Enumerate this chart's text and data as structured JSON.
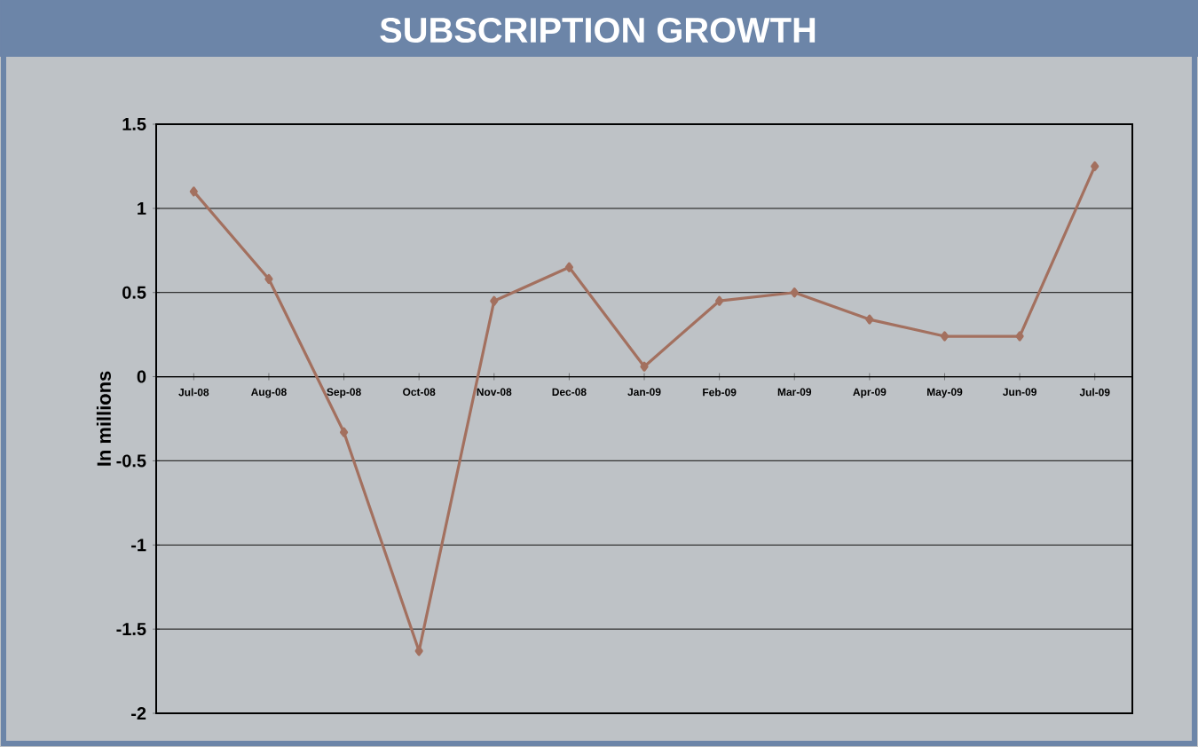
{
  "chart_data": {
    "type": "line",
    "title": "SUBSCRIPTION GROWTH",
    "ylabel": "In millions",
    "categories": [
      "Jul-08",
      "Aug-08",
      "Sep-08",
      "Oct-08",
      "Nov-08",
      "Dec-08",
      "Jan-09",
      "Feb-09",
      "Mar-09",
      "Apr-09",
      "May-09",
      "Jun-09",
      "Jul-09"
    ],
    "series": [
      {
        "color": "#a3705f",
        "values": [
          1.1,
          0.58,
          -0.33,
          -1.63,
          0.45,
          0.65,
          0.06,
          0.45,
          0.5,
          0.34,
          0.24,
          0.24,
          1.25
        ]
      }
    ],
    "ylim": [
      -2,
      1.5
    ],
    "yticks": [
      -2,
      -1.5,
      -1,
      -0.5,
      0,
      0.5,
      1,
      1.5
    ],
    "grid": "y",
    "marker": "diamond",
    "line_style": "solid"
  }
}
